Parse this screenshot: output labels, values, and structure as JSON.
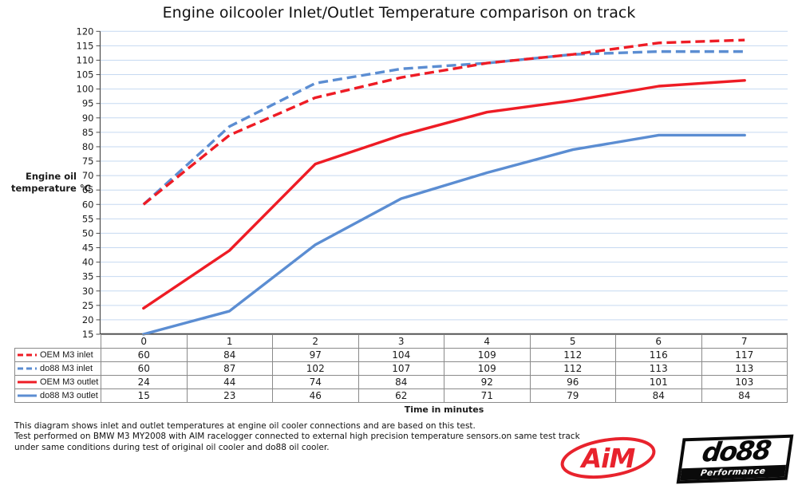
{
  "title": "Engine oilcooler Inlet/Outlet Temperature comparison on track",
  "chart_data": {
    "type": "line",
    "title": "Engine oilcooler Inlet/Outlet Temperature comparison on track",
    "ylabel_lines": [
      "Engine oil",
      "temperature °C"
    ],
    "xlabel": "Time in minutes",
    "categories": [
      0,
      1,
      2,
      3,
      4,
      5,
      6,
      7
    ],
    "ylim": [
      15,
      120
    ],
    "ytick_step": 5,
    "grid": true,
    "gridline_color": "#c6d9f1",
    "axis_color": "#4d4d4d",
    "legend_position": "data-table-left",
    "series": [
      {
        "name": "OEM M3 inlet",
        "color": "#ee1c25",
        "dash": true,
        "values": [
          60,
          84,
          97,
          104,
          109,
          112,
          116,
          117
        ]
      },
      {
        "name": "do88 M3 inlet",
        "color": "#5b8dd2",
        "dash": true,
        "values": [
          60,
          87,
          102,
          107,
          109,
          112,
          113,
          113
        ]
      },
      {
        "name": "OEM M3 outlet",
        "color": "#ee1c25",
        "dash": false,
        "values": [
          24,
          44,
          74,
          84,
          92,
          96,
          101,
          103
        ]
      },
      {
        "name": "do88 M3 outlet",
        "color": "#5b8dd2",
        "dash": false,
        "values": [
          15,
          23,
          46,
          62,
          71,
          79,
          84,
          84
        ]
      }
    ]
  },
  "footer": {
    "lines": [
      "This diagram shows inlet and outlet temperatures at engine oil cooler connections and are based on this test.",
      "Test performed on BMW M3 MY2008 with AIM racelogger connected to external high precision temperature sensors.on same test track",
      "under same conditions during test of original oil cooler and do88 oil cooler."
    ]
  },
  "logos": {
    "aim": {
      "text": "AiM",
      "color": "#e8232d"
    },
    "do88": {
      "text": "do88",
      "subtext": "Performance",
      "color": "#0a0a0a"
    }
  }
}
